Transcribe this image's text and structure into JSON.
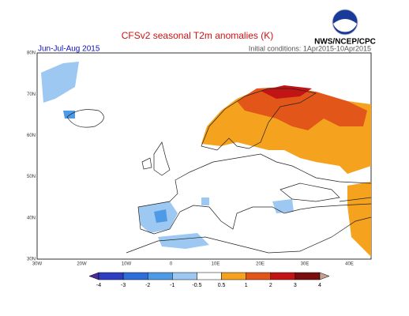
{
  "header": {
    "title": "CFSv2 seasonal T2m anomalies (K)",
    "season": "Jun-Jul-Aug 2015",
    "initial_conditions": "Initial conditions: 1Apr2015-10Apr2015",
    "agency": "NWS/NCEP/CPC"
  },
  "map": {
    "lat_labels": [
      "80N",
      "70N",
      "60N",
      "50N",
      "40N",
      "30N"
    ],
    "lon_labels": [
      "30W",
      "20W",
      "10W",
      "0",
      "10E",
      "20E",
      "30E",
      "40E"
    ]
  },
  "colorbar": {
    "labels": [
      -4,
      -3,
      -2,
      -1,
      -0.5,
      0.5,
      1,
      2,
      3,
      4
    ],
    "colors": [
      "#4b2a9a",
      "#2d3fc0",
      "#2f6ed8",
      "#4f9ae6",
      "#9cc8f2",
      "#ffffff",
      "#f5a21e",
      "#e3561a",
      "#c21414",
      "#7a0d0d",
      "#c8a090"
    ]
  }
}
